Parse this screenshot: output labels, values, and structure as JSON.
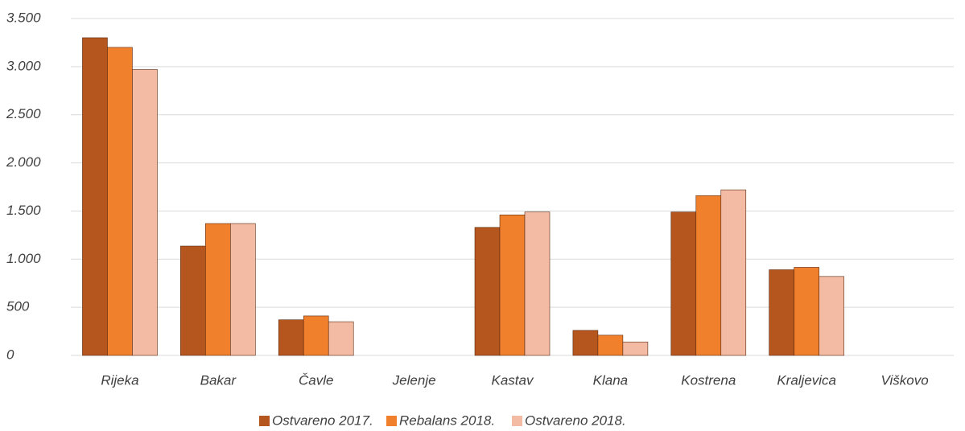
{
  "chart_data": {
    "type": "bar",
    "categories": [
      "Rijeka",
      "Bakar",
      "Čavle",
      "Jelenje",
      "Kastav",
      "Klana",
      "Kostrena",
      "Kraljevica",
      "Viškovo"
    ],
    "series": [
      {
        "name": "Ostvareno 2017.",
        "color": "#b5561e",
        "values": [
          3300,
          1136,
          370,
          null,
          1330,
          260,
          1490,
          890,
          null
        ]
      },
      {
        "name": "Rebalans 2018.",
        "color": "#f0802c",
        "values": [
          3200,
          1370,
          410,
          null,
          1460,
          210,
          1660,
          915,
          null
        ]
      },
      {
        "name": "Ostvareno 2018.",
        "color": "#f3bba4",
        "values": [
          2970,
          1370,
          350,
          null,
          1490,
          140,
          1720,
          820,
          null
        ]
      }
    ],
    "ylim": [
      0,
      3500
    ],
    "yticks": [
      0,
      500,
      {
        "value": 1000,
        "label": "1.000"
      },
      {
        "value": 1500,
        "label": "1.500"
      },
      {
        "value": 2000,
        "label": "2.000"
      },
      {
        "value": 2500,
        "label": "2.500"
      },
      {
        "value": 3000,
        "label": "3.000"
      },
      {
        "value": 3500,
        "label": "3.500"
      }
    ],
    "grid": true
  }
}
